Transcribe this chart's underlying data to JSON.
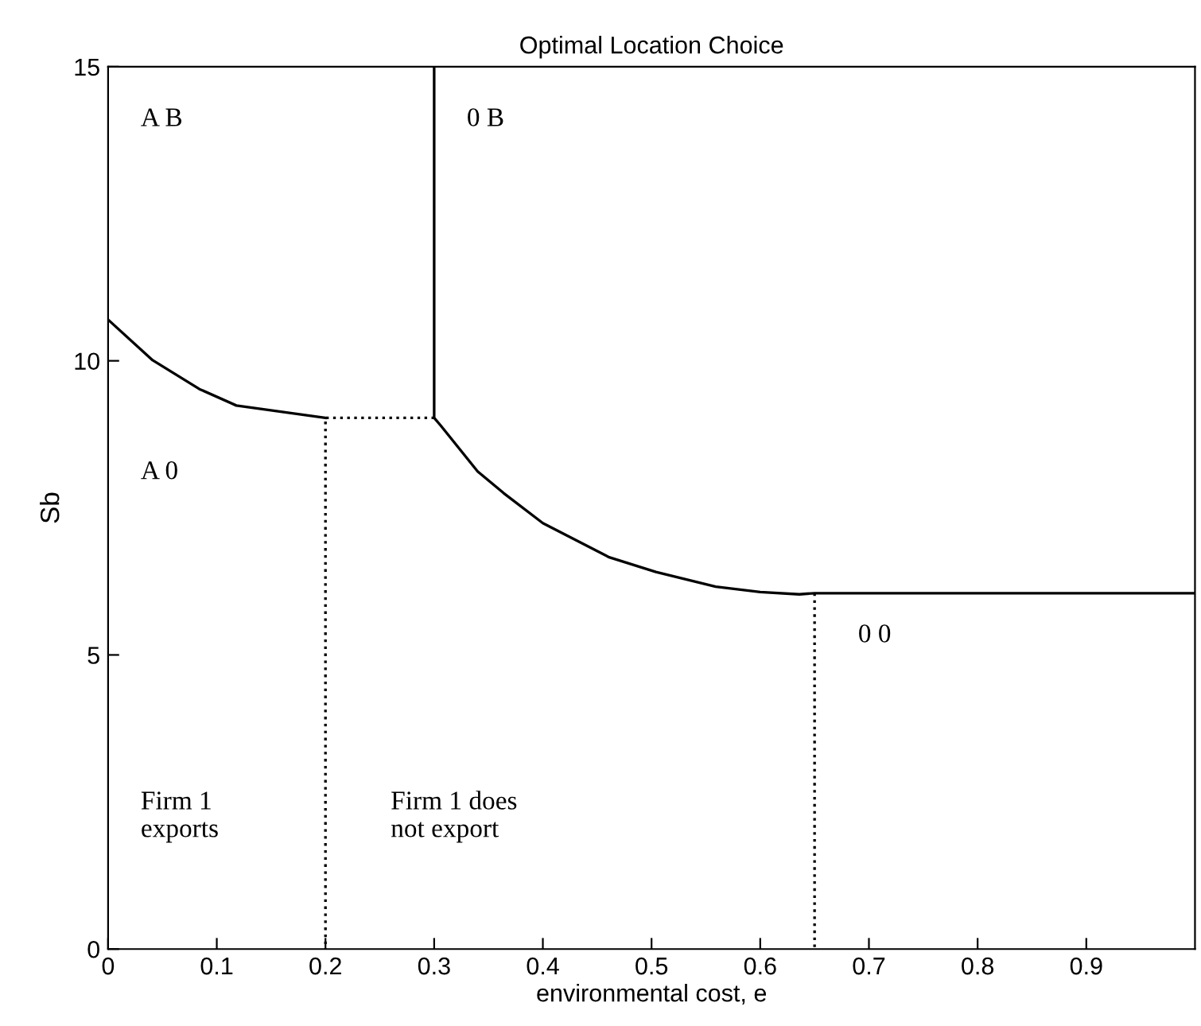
{
  "chart_data": {
    "type": "line",
    "title": "Optimal Location Choice",
    "xlabel": "environmental cost, e",
    "ylabel": "Sb",
    "xlim": [
      0,
      1
    ],
    "ylim": [
      0,
      15
    ],
    "xticks": [
      0,
      0.1,
      0.2,
      0.3,
      0.4,
      0.5,
      0.6,
      0.7,
      0.8,
      0.9
    ],
    "yticks": [
      0,
      5,
      10,
      15
    ],
    "grid": false,
    "legend": false,
    "marker": "none",
    "series": [
      {
        "color": "#000000",
        "line_style": "solid",
        "x": [
          0,
          0.041,
          0.084,
          0.118,
          0.2
        ],
        "values": [
          10.7,
          10.01,
          9.52,
          9.24,
          9.03
        ]
      },
      {
        "color": "#000000",
        "line_style": "dotted",
        "x": [
          0.3,
          0.2,
          0.2
        ],
        "values": [
          9.03,
          9.03,
          0
        ]
      },
      {
        "color": "#000000",
        "line_style": "solid",
        "x": [
          0.3,
          0.3,
          0.306,
          0.34,
          0.364,
          0.4,
          0.461,
          0.504,
          0.559,
          0.6,
          0.636,
          0.65,
          1
        ],
        "values": [
          15,
          9.03,
          8.9,
          8.12,
          7.75,
          7.24,
          6.66,
          6.41,
          6.16,
          6.07,
          6.03,
          6.05,
          6.05
        ]
      },
      {
        "color": "#000000",
        "line_style": "dotted",
        "x": [
          0.65,
          0.65
        ],
        "values": [
          6.05,
          0
        ]
      }
    ],
    "annotations": [
      "A B",
      "0 B",
      "A 0",
      "0 0",
      "Firm 1\nexports",
      "Firm 1 does\nnot export"
    ]
  }
}
